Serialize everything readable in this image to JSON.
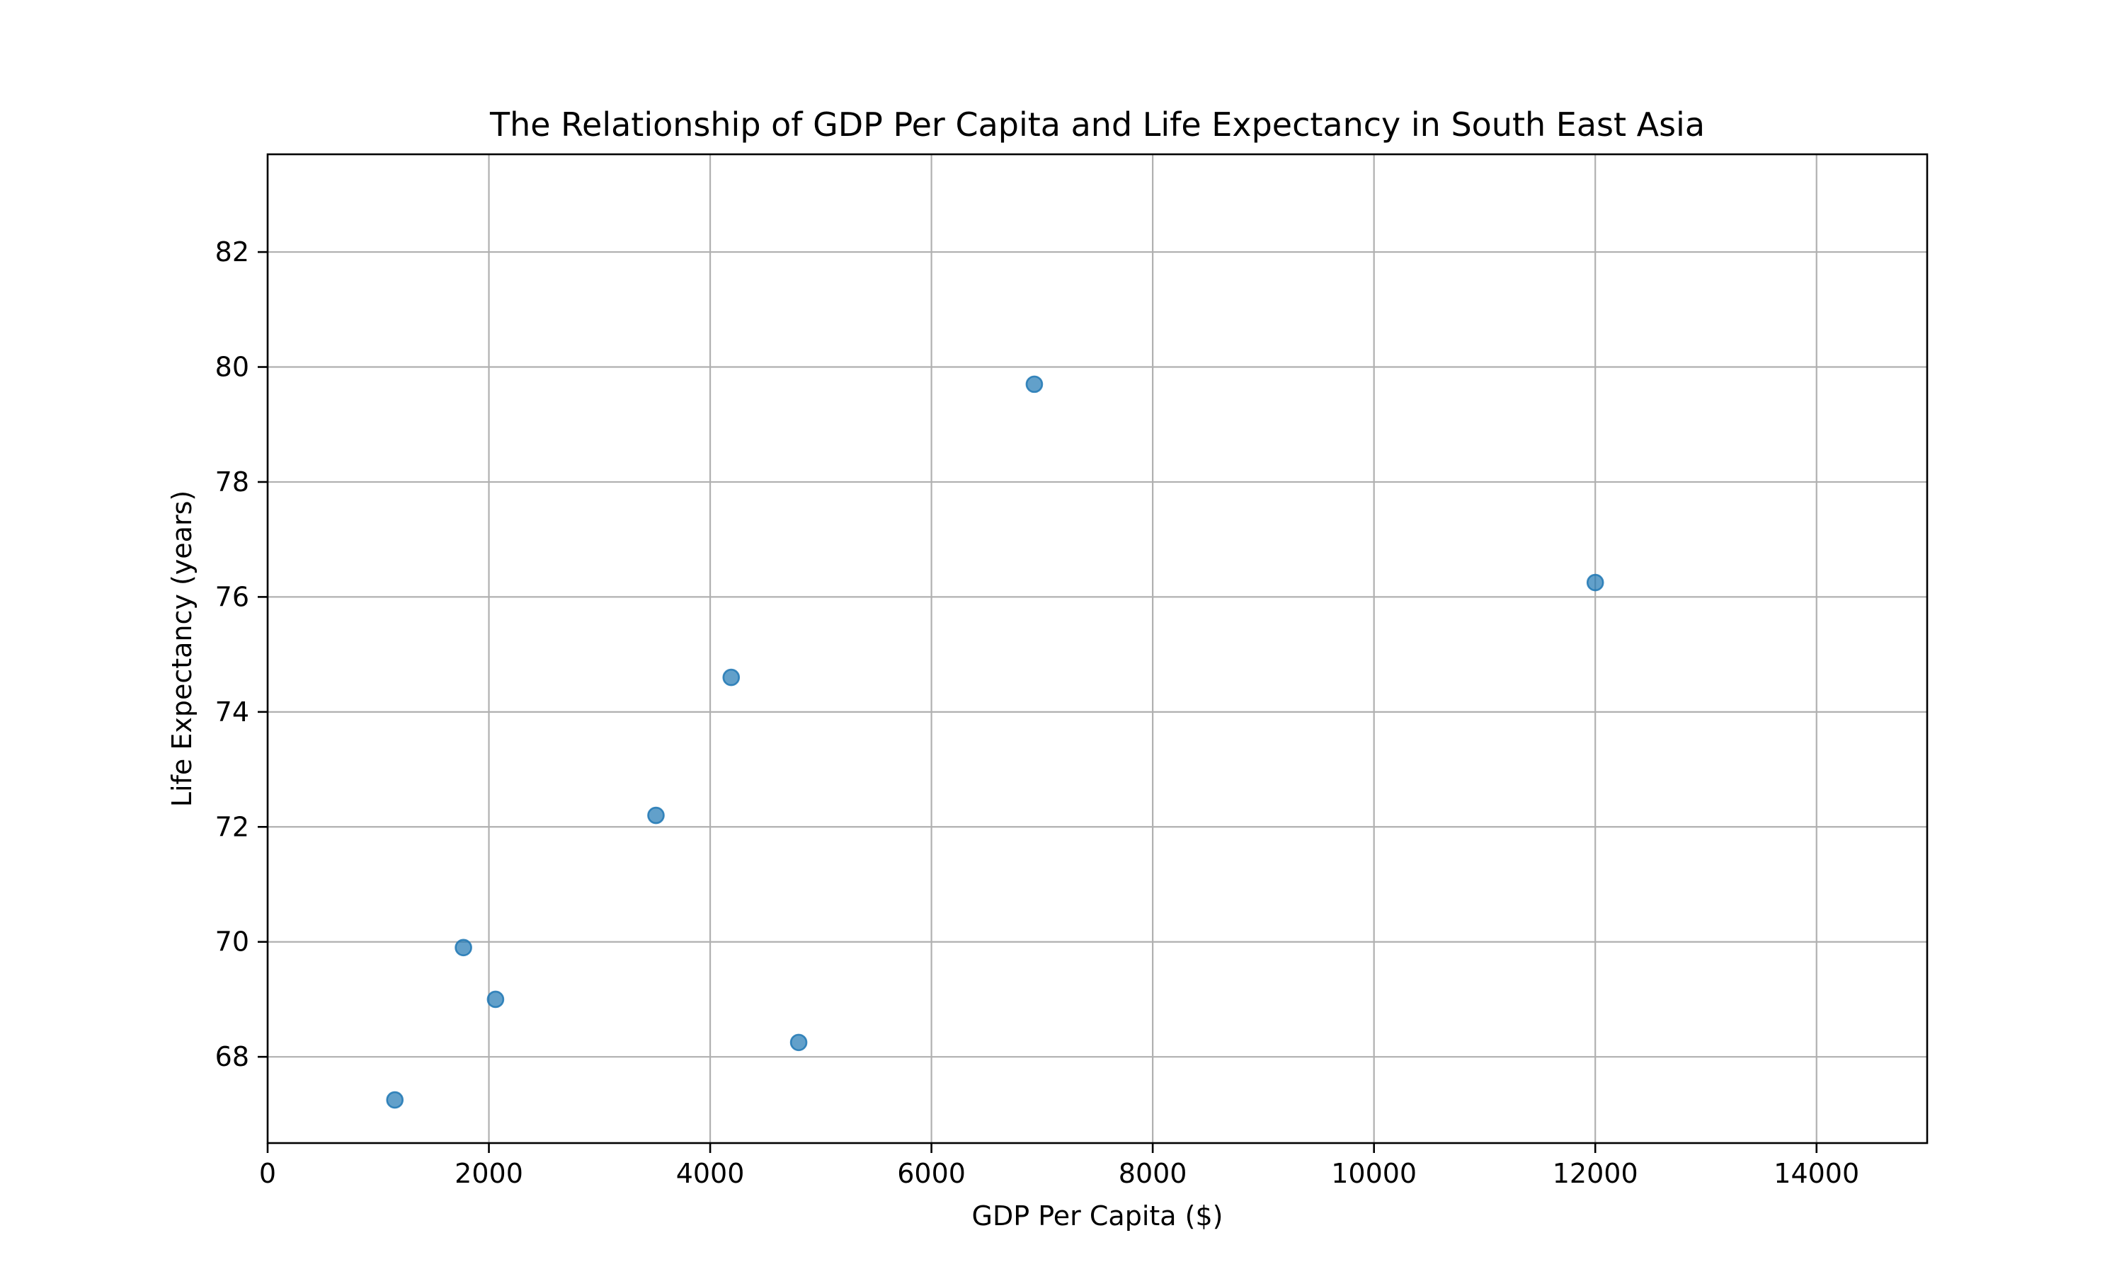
{
  "chart_data": {
    "type": "scatter",
    "title": "The Relationship of GDP Per Capita and Life Expectancy in South East Asia",
    "xlabel": "GDP Per Capita ($)",
    "ylabel": "Life Expectancy (years)",
    "xlim": [
      0,
      15000
    ],
    "ylim": [
      66.5,
      83.7
    ],
    "x_ticks": [
      0,
      2000,
      4000,
      6000,
      8000,
      10000,
      12000,
      14000
    ],
    "y_ticks": [
      68,
      70,
      72,
      74,
      76,
      78,
      80,
      82
    ],
    "grid": true,
    "colors": {
      "point_fill": "#1f77b4",
      "point_opacity": 0.7,
      "grid": "#b0b0b0",
      "axis": "#000000"
    },
    "points": [
      {
        "x": 1150,
        "y": 67.25
      },
      {
        "x": 1770,
        "y": 69.9
      },
      {
        "x": 2060,
        "y": 69.0
      },
      {
        "x": 3510,
        "y": 72.2
      },
      {
        "x": 4190,
        "y": 74.6
      },
      {
        "x": 4800,
        "y": 68.25
      },
      {
        "x": 6930,
        "y": 79.7
      },
      {
        "x": 12000,
        "y": 76.25
      }
    ]
  }
}
